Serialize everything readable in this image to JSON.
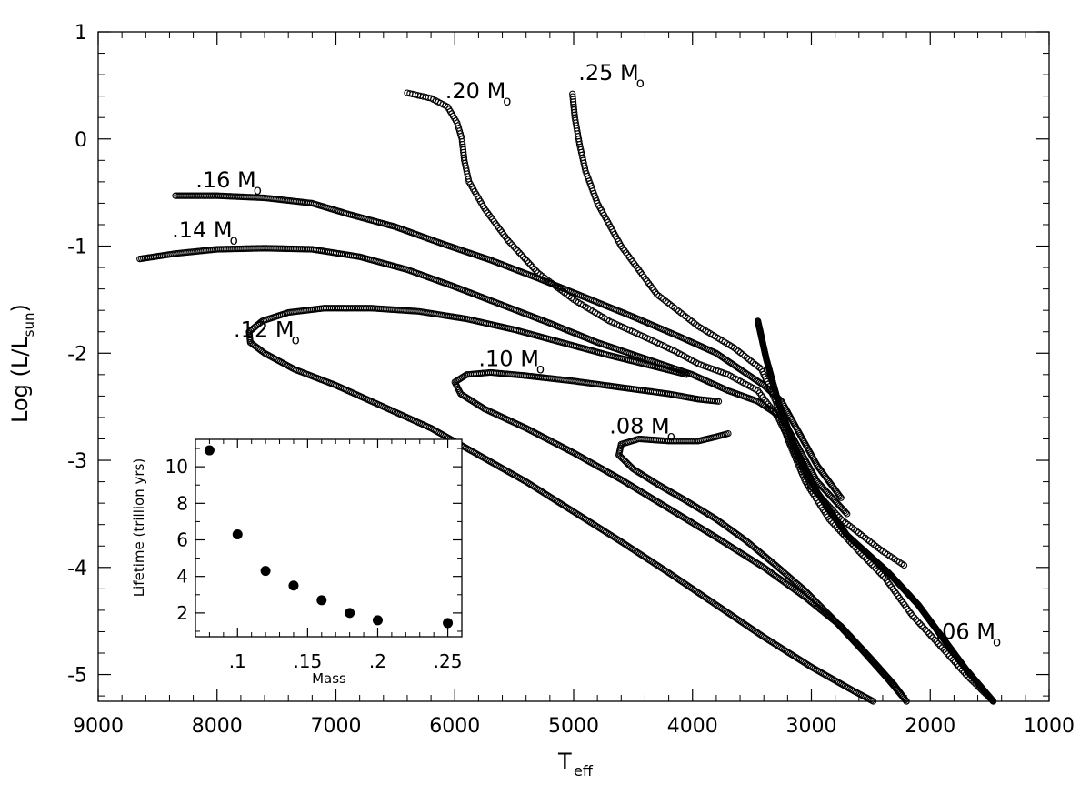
{
  "chart_data": [
    {
      "type": "scatter",
      "title": "",
      "xlabel": "T",
      "xlabel_sub": "eff",
      "ylabel": "Log (L/L",
      "ylabel_sub": "sun",
      "ylabel_close": ")",
      "xlim": [
        9000,
        1000
      ],
      "ylim": [
        -5.25,
        1.0
      ],
      "x_reversed": true,
      "x_ticks": [
        9000,
        8000,
        7000,
        6000,
        5000,
        4000,
        3000,
        2000,
        1000
      ],
      "x_tick_labels": [
        "9000",
        "8000",
        "7000",
        "6000",
        "5000",
        "4000",
        "3000",
        "2000",
        "1000"
      ],
      "y_ticks": [
        1,
        0,
        -1,
        -2,
        -3,
        -4,
        -5
      ],
      "y_tick_labels": [
        "1",
        "0",
        "-1",
        "-2",
        "-3",
        "-4",
        "-5"
      ],
      "grid": false,
      "marker": "open-circle",
      "series": [
        {
          "label": ".25 M",
          "label_sub": "o",
          "label_at": [
            4960,
            0.55
          ],
          "density": 3,
          "points": [
            [
              5010,
              0.42
            ],
            [
              4990,
              0.2
            ],
            [
              4950,
              -0.05
            ],
            [
              4900,
              -0.3
            ],
            [
              4800,
              -0.6
            ],
            [
              4600,
              -1.0
            ],
            [
              4300,
              -1.45
            ],
            [
              3950,
              -1.75
            ],
            [
              3650,
              -1.95
            ],
            [
              3420,
              -2.15
            ],
            [
              3300,
              -2.45
            ],
            [
              3200,
              -2.8
            ],
            [
              3050,
              -3.2
            ],
            [
              2850,
              -3.55
            ],
            [
              2600,
              -3.85
            ],
            [
              2380,
              -4.1
            ],
            [
              2150,
              -4.45
            ],
            [
              1900,
              -4.75
            ],
            [
              1700,
              -5.0
            ],
            [
              1470,
              -5.25
            ]
          ]
        },
        {
          "label": ".20 M",
          "label_sub": "o",
          "label_at": [
            6080,
            0.38
          ],
          "density": 3,
          "points": [
            [
              6400,
              0.43
            ],
            [
              6200,
              0.38
            ],
            [
              6060,
              0.3
            ],
            [
              5980,
              0.15
            ],
            [
              5940,
              0.0
            ],
            [
              5920,
              -0.2
            ],
            [
              5880,
              -0.4
            ],
            [
              5750,
              -0.65
            ],
            [
              5550,
              -0.95
            ],
            [
              5300,
              -1.25
            ],
            [
              5000,
              -1.5
            ],
            [
              4700,
              -1.7
            ],
            [
              4400,
              -1.85
            ],
            [
              4150,
              -1.98
            ],
            [
              3950,
              -2.1
            ],
            [
              3700,
              -2.2
            ],
            [
              3450,
              -2.35
            ],
            [
              3280,
              -2.6
            ],
            [
              3150,
              -2.9
            ],
            [
              3000,
              -3.25
            ],
            [
              2750,
              -3.55
            ],
            [
              2400,
              -3.85
            ],
            [
              2220,
              -3.98
            ]
          ]
        },
        {
          "label": ".16 M",
          "label_sub": "o",
          "label_at": [
            8180,
            -0.45
          ],
          "density": 2,
          "points": [
            [
              8350,
              -0.53
            ],
            [
              8000,
              -0.53
            ],
            [
              7600,
              -0.55
            ],
            [
              7200,
              -0.6
            ],
            [
              6900,
              -0.7
            ],
            [
              6500,
              -0.82
            ],
            [
              6100,
              -0.98
            ],
            [
              5700,
              -1.13
            ],
            [
              5300,
              -1.3
            ],
            [
              4900,
              -1.48
            ],
            [
              4500,
              -1.66
            ],
            [
              4100,
              -1.85
            ],
            [
              3800,
              -2.0
            ],
            [
              3600,
              -2.15
            ],
            [
              3400,
              -2.3
            ],
            [
              3250,
              -2.45
            ],
            [
              3100,
              -2.75
            ],
            [
              2950,
              -3.05
            ],
            [
              2750,
              -3.35
            ]
          ]
        },
        {
          "label": ".14 M",
          "label_sub": "o",
          "label_at": [
            8380,
            -0.92
          ],
          "density": 2,
          "points": [
            [
              8650,
              -1.12
            ],
            [
              8350,
              -1.07
            ],
            [
              8000,
              -1.03
            ],
            [
              7600,
              -1.02
            ],
            [
              7200,
              -1.03
            ],
            [
              6800,
              -1.1
            ],
            [
              6400,
              -1.22
            ],
            [
              6000,
              -1.38
            ],
            [
              5600,
              -1.55
            ],
            [
              5200,
              -1.72
            ],
            [
              4800,
              -1.9
            ],
            [
              4400,
              -2.05
            ],
            [
              4000,
              -2.2
            ],
            [
              3700,
              -2.35
            ],
            [
              3450,
              -2.45
            ],
            [
              3250,
              -2.6
            ],
            [
              3100,
              -2.9
            ],
            [
              2950,
              -3.2
            ],
            [
              2700,
              -3.5
            ]
          ]
        },
        {
          "label": ".12 M",
          "label_sub": "o",
          "label_at": [
            7860,
            -1.85
          ],
          "density": 2,
          "points": [
            [
              4050,
              -2.2
            ],
            [
              4300,
              -2.13
            ],
            [
              4700,
              -2.02
            ],
            [
              5100,
              -1.9
            ],
            [
              5500,
              -1.78
            ],
            [
              5900,
              -1.68
            ],
            [
              6300,
              -1.61
            ],
            [
              6700,
              -1.58
            ],
            [
              7100,
              -1.58
            ],
            [
              7400,
              -1.62
            ],
            [
              7620,
              -1.7
            ],
            [
              7730,
              -1.8
            ],
            [
              7720,
              -1.9
            ],
            [
              7600,
              -2.0
            ],
            [
              7350,
              -2.15
            ],
            [
              7000,
              -2.3
            ],
            [
              6600,
              -2.5
            ],
            [
              6200,
              -2.7
            ],
            [
              5800,
              -2.95
            ],
            [
              5400,
              -3.2
            ],
            [
              5000,
              -3.48
            ],
            [
              4600,
              -3.76
            ],
            [
              4200,
              -4.05
            ],
            [
              3800,
              -4.35
            ],
            [
              3400,
              -4.65
            ],
            [
              3000,
              -4.93
            ],
            [
              2650,
              -5.15
            ],
            [
              2480,
              -5.25
            ]
          ]
        },
        {
          "label": ".10 M",
          "label_sub": "o",
          "label_at": [
            5800,
            -2.12
          ],
          "density": 2,
          "points": [
            [
              3780,
              -2.45
            ],
            [
              3950,
              -2.43
            ],
            [
              4200,
              -2.38
            ],
            [
              4600,
              -2.32
            ],
            [
              5000,
              -2.26
            ],
            [
              5400,
              -2.21
            ],
            [
              5700,
              -2.18
            ],
            [
              5900,
              -2.2
            ],
            [
              6000,
              -2.27
            ],
            [
              5950,
              -2.38
            ],
            [
              5750,
              -2.52
            ],
            [
              5400,
              -2.7
            ],
            [
              5000,
              -2.93
            ],
            [
              4600,
              -3.18
            ],
            [
              4200,
              -3.45
            ],
            [
              3800,
              -3.72
            ],
            [
              3400,
              -4.0
            ],
            [
              3050,
              -4.28
            ],
            [
              2750,
              -4.55
            ],
            [
              2500,
              -4.85
            ],
            [
              2300,
              -5.1
            ],
            [
              2200,
              -5.25
            ]
          ]
        },
        {
          "label": ".08 M",
          "label_sub": "o",
          "label_at": [
            4700,
            -2.75
          ],
          "density": 2,
          "points": [
            [
              3700,
              -2.75
            ],
            [
              3800,
              -2.78
            ],
            [
              3950,
              -2.82
            ],
            [
              4200,
              -2.82
            ],
            [
              4450,
              -2.8
            ],
            [
              4600,
              -2.85
            ],
            [
              4620,
              -2.95
            ],
            [
              4500,
              -3.08
            ],
            [
              4300,
              -3.22
            ],
            [
              4050,
              -3.38
            ],
            [
              3800,
              -3.55
            ],
            [
              3550,
              -3.75
            ],
            [
              3300,
              -3.98
            ],
            [
              3050,
              -4.22
            ],
            [
              2800,
              -4.5
            ],
            [
              2550,
              -4.8
            ],
            [
              2350,
              -5.05
            ],
            [
              2200,
              -5.25
            ]
          ]
        },
        {
          "label": ".06 M",
          "label_sub": "o",
          "label_at": [
            1960,
            -4.67
          ],
          "density": 1,
          "points": [
            [
              3450,
              -1.7
            ],
            [
              3380,
              -2.05
            ],
            [
              3280,
              -2.45
            ],
            [
              3150,
              -2.85
            ],
            [
              2950,
              -3.3
            ],
            [
              2700,
              -3.7
            ],
            [
              2350,
              -4.05
            ],
            [
              2100,
              -4.35
            ],
            [
              1900,
              -4.65
            ],
            [
              1700,
              -4.95
            ],
            [
              1470,
              -5.25
            ]
          ]
        }
      ]
    },
    {
      "type": "scatter",
      "title": "",
      "xlabel": "Mass",
      "ylabel": "Lifetime (trillion yrs)",
      "xlim": [
        0.07,
        0.26
      ],
      "ylim": [
        0.7,
        11.5
      ],
      "x_ticks": [
        0.1,
        0.15,
        0.2,
        0.25
      ],
      "x_tick_labels": [
        ".1",
        ".15",
        ".2",
        ".25"
      ],
      "y_ticks": [
        2,
        4,
        6,
        8,
        10
      ],
      "y_tick_labels": [
        "2",
        "4",
        "6",
        "8",
        "10"
      ],
      "grid": false,
      "marker": "filled-circle",
      "x": [
        0.08,
        0.1,
        0.12,
        0.14,
        0.16,
        0.18,
        0.2,
        0.25
      ],
      "values": [
        10.9,
        6.3,
        4.3,
        3.5,
        2.7,
        2.0,
        1.6,
        1.45
      ]
    }
  ]
}
